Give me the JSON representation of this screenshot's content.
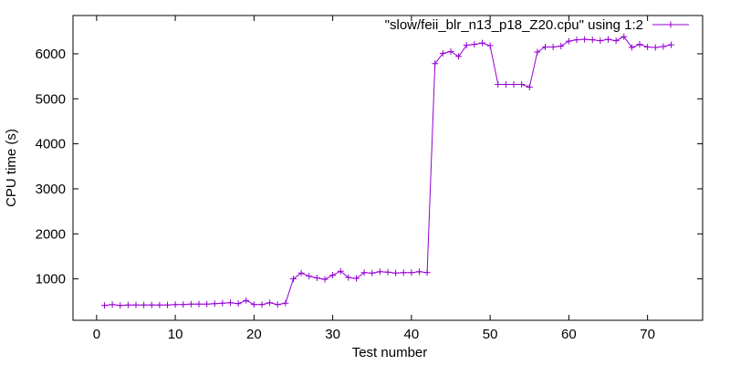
{
  "chart_data": {
    "type": "line",
    "title": "",
    "xlabel": "Test number",
    "ylabel": "CPU time (s)",
    "xlim": [
      -3,
      77
    ],
    "ylim": [
      80,
      6850
    ],
    "xticks": [
      0,
      10,
      20,
      30,
      40,
      50,
      60,
      70
    ],
    "yticks": [
      1000,
      2000,
      3000,
      4000,
      5000,
      6000
    ],
    "grid": false,
    "legend_position": "top-right",
    "series": [
      {
        "name": "\"slow/feii_blr_n13_p18_Z20.cpu\" using 1:2",
        "color": "#9400d3",
        "marker": "plus",
        "x": [
          1,
          2,
          3,
          4,
          5,
          6,
          7,
          8,
          9,
          10,
          11,
          12,
          13,
          14,
          15,
          16,
          17,
          18,
          19,
          20,
          21,
          22,
          23,
          24,
          25,
          26,
          27,
          28,
          29,
          30,
          31,
          32,
          33,
          34,
          35,
          36,
          37,
          38,
          39,
          40,
          41,
          42,
          43,
          44,
          45,
          46,
          47,
          48,
          49,
          50,
          51,
          52,
          53,
          54,
          55,
          56,
          57,
          58,
          59,
          60,
          61,
          62,
          63,
          64,
          65,
          66,
          67,
          68,
          69,
          70,
          71,
          72,
          73
        ],
        "y": [
          410,
          430,
          410,
          420,
          420,
          420,
          420,
          420,
          420,
          430,
          430,
          440,
          440,
          440,
          450,
          460,
          470,
          450,
          520,
          430,
          430,
          470,
          430,
          460,
          1000,
          1130,
          1060,
          1020,
          990,
          1080,
          1170,
          1030,
          1010,
          1140,
          1130,
          1160,
          1150,
          1130,
          1140,
          1140,
          1160,
          1140,
          5780,
          6010,
          6050,
          5940,
          6190,
          6210,
          6240,
          6180,
          5320,
          5320,
          5320,
          5320,
          5260,
          6040,
          6150,
          6150,
          6170,
          6280,
          6310,
          6320,
          6310,
          6290,
          6320,
          6290,
          6380,
          6140,
          6210,
          6150,
          6140,
          6160,
          6200
        ]
      }
    ]
  }
}
